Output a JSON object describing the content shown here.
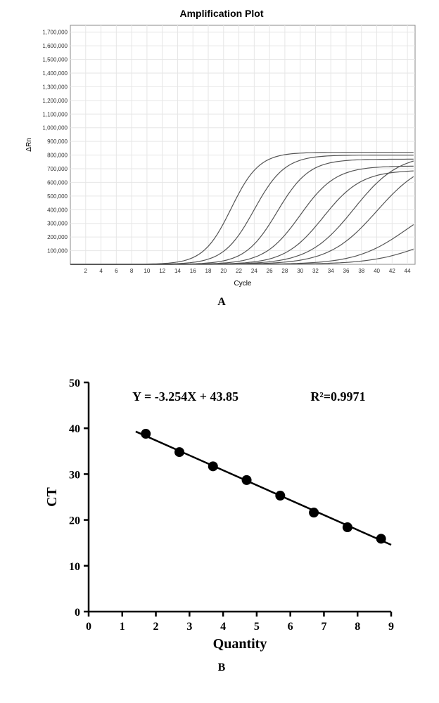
{
  "panelA": {
    "title": "Amplification Plot",
    "title_fontsize": 14,
    "title_fontweight": "bold",
    "xlabel": "Cycle",
    "ylabel": "ΔRn",
    "label_fontsize": 10,
    "tick_fontsize": 8,
    "xlim": [
      0,
      45
    ],
    "ylim": [
      0,
      1750000
    ],
    "xticks": [
      2,
      4,
      6,
      8,
      10,
      12,
      14,
      16,
      18,
      20,
      22,
      24,
      26,
      28,
      30,
      32,
      34,
      36,
      38,
      40,
      42,
      44
    ],
    "yticks": [
      100000,
      200000,
      300000,
      400000,
      500000,
      600000,
      700000,
      800000,
      900000,
      1000000,
      1100000,
      1200000,
      1300000,
      1400000,
      1500000,
      1600000,
      1700000
    ],
    "ytick_labels": [
      "100,000",
      "200,000",
      "300,000",
      "400,000",
      "500,000",
      "600,000",
      "700,000",
      "800,000",
      "900,000",
      "1,000,000",
      "1,100,000",
      "1,200,000",
      "1,300,000",
      "1,400,000",
      "1,500,000",
      "1,600,000",
      "1,700,000"
    ],
    "background_color": "#ffffff",
    "grid_color": "#e6e6e6",
    "axis_color": "#888888",
    "curve_color": "#555555",
    "curve_width": 1.2,
    "curves": [
      {
        "x0": 15,
        "k": 0.55,
        "plateau": 820000
      },
      {
        "x0": 18,
        "k": 0.5,
        "plateau": 800000
      },
      {
        "x0": 21,
        "k": 0.48,
        "plateau": 770000
      },
      {
        "x0": 24,
        "k": 0.43,
        "plateau": 720000
      },
      {
        "x0": 27,
        "k": 0.4,
        "plateau": 690000
      },
      {
        "x0": 31,
        "k": 0.34,
        "plateau": 810000
      },
      {
        "x0": 34,
        "k": 0.32,
        "plateau": 780000
      },
      {
        "x0": 38,
        "k": 0.3,
        "plateau": 520000
      },
      {
        "x0": 41,
        "k": 0.28,
        "plateau": 320000
      }
    ],
    "panel_label": "A"
  },
  "panelB": {
    "equation": "Y = -3.254X + 43.85",
    "r2": "R²=0.9971",
    "eq_fontsize": 18,
    "eq_fontweight": "bold",
    "xlabel": "Quantity",
    "ylabel": "CT",
    "label_fontsize": 20,
    "label_fontweight": "bold",
    "tick_fontsize": 16,
    "tick_fontweight": "bold",
    "xlim": [
      0,
      9
    ],
    "ylim": [
      0,
      50
    ],
    "xticks": [
      0,
      1,
      2,
      3,
      4,
      5,
      6,
      7,
      8,
      9
    ],
    "yticks": [
      0,
      10,
      20,
      30,
      40,
      50
    ],
    "points": [
      {
        "x": 1.7,
        "y": 38.8
      },
      {
        "x": 2.7,
        "y": 34.8
      },
      {
        "x": 3.7,
        "y": 31.7
      },
      {
        "x": 4.7,
        "y": 28.7
      },
      {
        "x": 5.7,
        "y": 25.3
      },
      {
        "x": 6.7,
        "y": 21.6
      },
      {
        "x": 7.7,
        "y": 18.4
      },
      {
        "x": 8.7,
        "y": 15.9
      }
    ],
    "line": {
      "slope": -3.254,
      "intercept": 43.85,
      "x1": 1.4,
      "x2": 9.0
    },
    "point_color": "#000000",
    "point_radius": 7,
    "line_color": "#000000",
    "line_width": 2.5,
    "axis_color": "#000000",
    "axis_width": 2.5,
    "background_color": "#ffffff",
    "panel_label": "B"
  }
}
